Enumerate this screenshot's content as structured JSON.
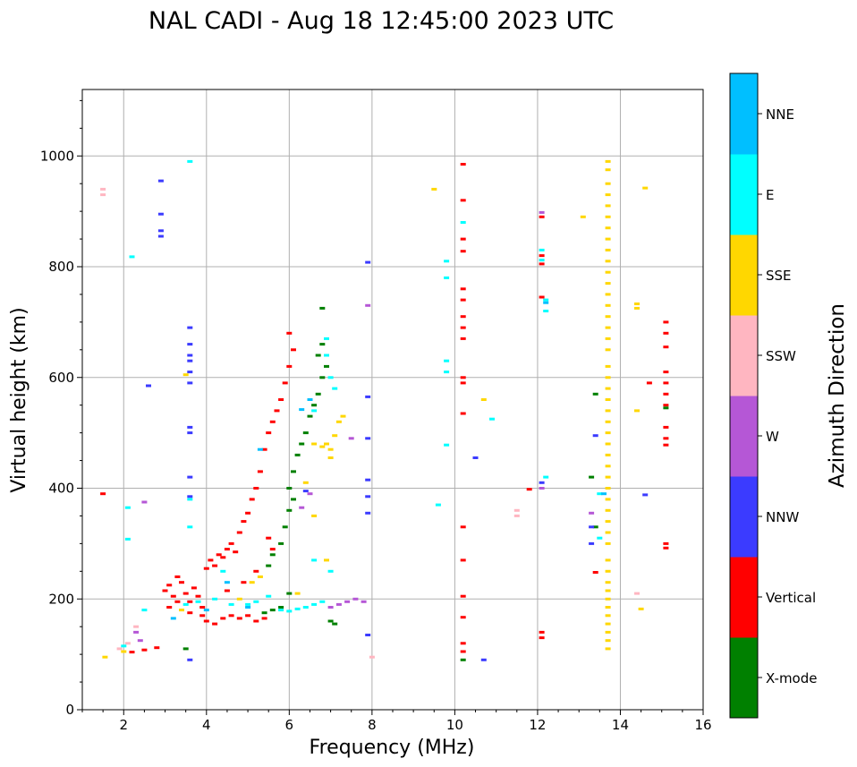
{
  "chart_data": {
    "type": "scatter",
    "title": "NAL CADI - Aug 18 12:45:00 2023 UTC",
    "xlabel": "Frequency (MHz)",
    "ylabel": "Virtual height (km)",
    "xlim": [
      1,
      16
    ],
    "ylim": [
      0,
      1120
    ],
    "xticks": [
      2,
      4,
      6,
      8,
      10,
      12,
      14,
      16
    ],
    "yticks": [
      0,
      200,
      400,
      600,
      800,
      1000
    ],
    "grid": true,
    "colorbar": {
      "label": "Azimuth Direction",
      "categories": [
        {
          "name": "X-mode",
          "color": "#008000"
        },
        {
          "name": "Vertical",
          "color": "#ff0000"
        },
        {
          "name": "NNW",
          "color": "#3b3bff"
        },
        {
          "name": "W",
          "color": "#b557d6"
        },
        {
          "name": "SSW",
          "color": "#ffb6c1"
        },
        {
          "name": "SSE",
          "color": "#ffd700"
        },
        {
          "name": "E",
          "color": "#00ffff"
        },
        {
          "name": "NNE",
          "color": "#00bfff"
        }
      ]
    },
    "series": [
      {
        "name": "Vertical",
        "color": "#ff0000",
        "points": [
          [
            3.0,
            215
          ],
          [
            3.1,
            225
          ],
          [
            3.2,
            205
          ],
          [
            3.3,
            240
          ],
          [
            3.4,
            230
          ],
          [
            3.5,
            210
          ],
          [
            3.6,
            195
          ],
          [
            3.7,
            220
          ],
          [
            3.8,
            205
          ],
          [
            3.9,
            185
          ],
          [
            3.1,
            185
          ],
          [
            3.3,
            195
          ],
          [
            3.6,
            175
          ],
          [
            3.9,
            170
          ],
          [
            4.0,
            160
          ],
          [
            4.2,
            155
          ],
          [
            4.4,
            165
          ],
          [
            4.6,
            170
          ],
          [
            4.8,
            165
          ],
          [
            5.0,
            170
          ],
          [
            5.2,
            160
          ],
          [
            5.4,
            165
          ],
          [
            4.0,
            255
          ],
          [
            4.1,
            270
          ],
          [
            4.2,
            260
          ],
          [
            4.3,
            280
          ],
          [
            4.4,
            275
          ],
          [
            4.5,
            290
          ],
          [
            4.6,
            300
          ],
          [
            4.7,
            285
          ],
          [
            4.8,
            320
          ],
          [
            4.9,
            340
          ],
          [
            5.0,
            355
          ],
          [
            5.1,
            380
          ],
          [
            5.2,
            400
          ],
          [
            5.3,
            430
          ],
          [
            5.4,
            470
          ],
          [
            5.5,
            500
          ],
          [
            5.6,
            520
          ],
          [
            5.7,
            540
          ],
          [
            5.8,
            560
          ],
          [
            5.9,
            590
          ],
          [
            6.0,
            620
          ],
          [
            6.1,
            650
          ],
          [
            6.0,
            680
          ],
          [
            5.5,
            310
          ],
          [
            5.6,
            290
          ],
          [
            5.2,
            250
          ],
          [
            4.9,
            230
          ],
          [
            4.5,
            215
          ],
          [
            1.5,
            390
          ],
          [
            2.5,
            108
          ],
          [
            2.8,
            112
          ],
          [
            2.2,
            104
          ],
          [
            10.2,
            985
          ],
          [
            10.2,
            920
          ],
          [
            10.2,
            850
          ],
          [
            10.2,
            828
          ],
          [
            10.2,
            760
          ],
          [
            10.2,
            740
          ],
          [
            10.2,
            710
          ],
          [
            10.2,
            690
          ],
          [
            10.2,
            670
          ],
          [
            10.2,
            600
          ],
          [
            10.2,
            590
          ],
          [
            10.2,
            535
          ],
          [
            10.2,
            330
          ],
          [
            10.2,
            270
          ],
          [
            10.2,
            205
          ],
          [
            10.2,
            167
          ],
          [
            10.2,
            120
          ],
          [
            10.2,
            105
          ],
          [
            12.1,
            890
          ],
          [
            12.1,
            820
          ],
          [
            12.1,
            805
          ],
          [
            12.1,
            745
          ],
          [
            12.1,
            140
          ],
          [
            12.1,
            130
          ],
          [
            11.8,
            398
          ],
          [
            13.4,
            248
          ],
          [
            14.7,
            590
          ],
          [
            15.1,
            700
          ],
          [
            15.1,
            680
          ],
          [
            15.1,
            655
          ],
          [
            15.1,
            610
          ],
          [
            15.1,
            590
          ],
          [
            15.1,
            570
          ],
          [
            15.1,
            550
          ],
          [
            15.1,
            510
          ],
          [
            15.1,
            490
          ],
          [
            15.1,
            478
          ],
          [
            15.1,
            300
          ],
          [
            15.1,
            292
          ]
        ]
      },
      {
        "name": "X-mode",
        "color": "#008000",
        "points": [
          [
            5.4,
            175
          ],
          [
            5.6,
            180
          ],
          [
            5.8,
            185
          ],
          [
            6.0,
            210
          ],
          [
            5.5,
            260
          ],
          [
            5.6,
            280
          ],
          [
            5.8,
            300
          ],
          [
            5.9,
            330
          ],
          [
            6.0,
            360
          ],
          [
            6.1,
            380
          ],
          [
            6.0,
            400
          ],
          [
            6.1,
            430
          ],
          [
            6.2,
            460
          ],
          [
            6.3,
            480
          ],
          [
            6.4,
            500
          ],
          [
            6.5,
            530
          ],
          [
            6.6,
            550
          ],
          [
            6.7,
            570
          ],
          [
            6.8,
            600
          ],
          [
            6.9,
            620
          ],
          [
            6.7,
            640
          ],
          [
            6.8,
            660
          ],
          [
            7.0,
            160
          ],
          [
            7.1,
            155
          ],
          [
            6.8,
            725
          ],
          [
            3.5,
            110
          ],
          [
            10.2,
            90
          ],
          [
            13.4,
            570
          ],
          [
            13.3,
            420
          ],
          [
            13.4,
            330
          ],
          [
            15.1,
            545
          ]
        ]
      },
      {
        "name": "NNW",
        "color": "#3b3bff",
        "points": [
          [
            2.9,
            955
          ],
          [
            2.9,
            895
          ],
          [
            2.9,
            865
          ],
          [
            2.9,
            855
          ],
          [
            3.6,
            690
          ],
          [
            3.6,
            660
          ],
          [
            3.6,
            640
          ],
          [
            3.6,
            630
          ],
          [
            3.6,
            610
          ],
          [
            3.6,
            590
          ],
          [
            3.6,
            510
          ],
          [
            3.6,
            500
          ],
          [
            3.6,
            420
          ],
          [
            3.6,
            385
          ],
          [
            2.6,
            585
          ],
          [
            7.9,
            565
          ],
          [
            7.9,
            490
          ],
          [
            7.9,
            415
          ],
          [
            7.9,
            385
          ],
          [
            7.9,
            355
          ],
          [
            7.9,
            135
          ],
          [
            10.5,
            455
          ],
          [
            10.7,
            90
          ],
          [
            13.4,
            495
          ],
          [
            13.3,
            330
          ],
          [
            13.3,
            300
          ],
          [
            14.6,
            388
          ],
          [
            12.1,
            410
          ],
          [
            6.4,
            395
          ],
          [
            3.6,
            90
          ],
          [
            7.9,
            808
          ]
        ]
      },
      {
        "name": "W",
        "color": "#b557d6",
        "points": [
          [
            7.0,
            185
          ],
          [
            7.2,
            190
          ],
          [
            7.4,
            195
          ],
          [
            7.6,
            200
          ],
          [
            7.8,
            195
          ],
          [
            7.9,
            730
          ],
          [
            6.3,
            365
          ],
          [
            6.5,
            390
          ],
          [
            13.3,
            355
          ],
          [
            12.1,
            898
          ],
          [
            12.1,
            400
          ],
          [
            7.5,
            490
          ],
          [
            2.5,
            375
          ],
          [
            2.3,
            140
          ],
          [
            2.4,
            125
          ]
        ]
      },
      {
        "name": "SSW",
        "color": "#ffb6c1",
        "points": [
          [
            1.5,
            940
          ],
          [
            1.5,
            930
          ],
          [
            11.5,
            360
          ],
          [
            11.5,
            350
          ],
          [
            14.4,
            210
          ],
          [
            8.0,
            95
          ],
          [
            2.3,
            150
          ],
          [
            2.1,
            120
          ],
          [
            1.9,
            110
          ]
        ]
      },
      {
        "name": "SSE",
        "color": "#ffd700",
        "points": [
          [
            6.9,
            480
          ],
          [
            7.0,
            470
          ],
          [
            7.1,
            495
          ],
          [
            7.2,
            520
          ],
          [
            7.3,
            530
          ],
          [
            7.0,
            455
          ],
          [
            6.8,
            475
          ],
          [
            6.6,
            480
          ],
          [
            6.4,
            410
          ],
          [
            6.6,
            350
          ],
          [
            5.3,
            240
          ],
          [
            5.1,
            230
          ],
          [
            4.8,
            200
          ],
          [
            6.2,
            210
          ],
          [
            6.9,
            270
          ],
          [
            9.5,
            940
          ],
          [
            10.7,
            560
          ],
          [
            13.1,
            890
          ],
          [
            14.6,
            942
          ],
          [
            14.4,
            733
          ],
          [
            14.4,
            725
          ],
          [
            14.4,
            540
          ],
          [
            14.5,
            182
          ],
          [
            13.7,
            990
          ],
          [
            13.7,
            975
          ],
          [
            13.7,
            950
          ],
          [
            13.7,
            930
          ],
          [
            13.7,
            910
          ],
          [
            13.7,
            890
          ],
          [
            13.7,
            870
          ],
          [
            13.7,
            850
          ],
          [
            13.7,
            830
          ],
          [
            13.7,
            810
          ],
          [
            13.7,
            790
          ],
          [
            13.7,
            770
          ],
          [
            13.7,
            750
          ],
          [
            13.7,
            730
          ],
          [
            13.7,
            710
          ],
          [
            13.7,
            690
          ],
          [
            13.7,
            670
          ],
          [
            13.7,
            650
          ],
          [
            13.7,
            620
          ],
          [
            13.7,
            600
          ],
          [
            13.7,
            580
          ],
          [
            13.7,
            560
          ],
          [
            13.7,
            540
          ],
          [
            13.7,
            520
          ],
          [
            13.7,
            500
          ],
          [
            13.7,
            480
          ],
          [
            13.7,
            460
          ],
          [
            13.7,
            440
          ],
          [
            13.7,
            420
          ],
          [
            13.7,
            400
          ],
          [
            13.7,
            380
          ],
          [
            13.7,
            360
          ],
          [
            13.7,
            340
          ],
          [
            13.7,
            320
          ],
          [
            13.7,
            300
          ],
          [
            13.7,
            270
          ],
          [
            13.7,
            250
          ],
          [
            13.7,
            230
          ],
          [
            13.7,
            215
          ],
          [
            13.7,
            200
          ],
          [
            13.7,
            185
          ],
          [
            13.7,
            170
          ],
          [
            13.7,
            155
          ],
          [
            13.7,
            140
          ],
          [
            13.7,
            125
          ],
          [
            13.7,
            110
          ],
          [
            3.5,
            605
          ],
          [
            3.4,
            180
          ],
          [
            2.0,
            105
          ],
          [
            1.55,
            95
          ]
        ]
      },
      {
        "name": "E",
        "color": "#00ffff",
        "points": [
          [
            5.8,
            180
          ],
          [
            6.0,
            178
          ],
          [
            6.2,
            182
          ],
          [
            6.4,
            185
          ],
          [
            6.6,
            190
          ],
          [
            6.8,
            195
          ],
          [
            5.0,
            190
          ],
          [
            5.2,
            195
          ],
          [
            5.5,
            205
          ],
          [
            4.6,
            190
          ],
          [
            4.2,
            200
          ],
          [
            3.8,
            195
          ],
          [
            3.5,
            190
          ],
          [
            6.9,
            670
          ],
          [
            6.9,
            640
          ],
          [
            7.0,
            600
          ],
          [
            7.1,
            580
          ],
          [
            6.6,
            540
          ],
          [
            6.6,
            270
          ],
          [
            7.0,
            250
          ],
          [
            3.6,
            990
          ],
          [
            2.2,
            818
          ],
          [
            3.6,
            380
          ],
          [
            3.6,
            330
          ],
          [
            2.1,
            365
          ],
          [
            2.1,
            308
          ],
          [
            9.8,
            810
          ],
          [
            9.8,
            780
          ],
          [
            9.8,
            630
          ],
          [
            9.8,
            610
          ],
          [
            9.8,
            478
          ],
          [
            9.6,
            370
          ],
          [
            10.2,
            880
          ],
          [
            10.9,
            525
          ],
          [
            12.2,
            720
          ],
          [
            12.2,
            740
          ],
          [
            12.1,
            830
          ],
          [
            12.1,
            812
          ],
          [
            12.2,
            420
          ],
          [
            13.5,
            390
          ],
          [
            13.5,
            310
          ],
          [
            4.4,
            250
          ],
          [
            2.5,
            180
          ],
          [
            2.0,
            115
          ]
        ]
      },
      {
        "name": "NNE",
        "color": "#00bfff",
        "points": [
          [
            6.5,
            560
          ],
          [
            6.3,
            542
          ],
          [
            5.3,
            470
          ],
          [
            4.5,
            230
          ],
          [
            12.2,
            735
          ],
          [
            13.6,
            390
          ],
          [
            5.0,
            185
          ],
          [
            4.0,
            180
          ],
          [
            3.2,
            165
          ]
        ]
      }
    ]
  }
}
